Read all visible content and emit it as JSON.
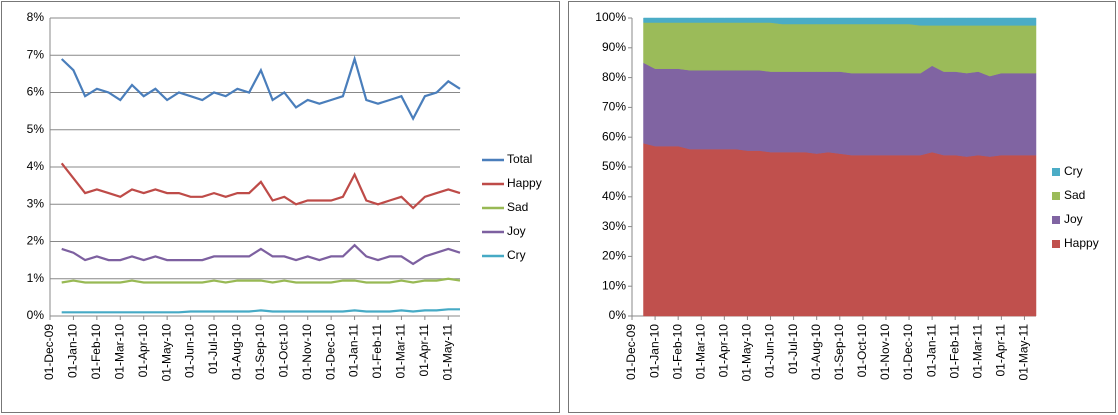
{
  "chart_data": [
    {
      "type": "line",
      "categories": [
        "01-Dec-09",
        null,
        "01-Jan-10",
        null,
        "01-Feb-10",
        null,
        "01-Mar-10",
        null,
        "01-Apr-10",
        null,
        "01-May-10",
        null,
        "01-Jun-10",
        null,
        "01-Jul-10",
        null,
        "01-Aug-10",
        null,
        "01-Sep-10",
        null,
        "01-Oct-10",
        null,
        "01-Nov-10",
        null,
        "01-Dec-10",
        null,
        "01-Jan-11",
        null,
        "01-Feb-11",
        null,
        "01-Mar-11",
        null,
        "01-Apr-11",
        null,
        "01-May-11",
        null
      ],
      "ylim": [
        0,
        8
      ],
      "yticks": [
        {
          "value": 0,
          "label": "0%"
        },
        {
          "value": 1,
          "label": "1%"
        },
        {
          "value": 2,
          "label": "2%"
        },
        {
          "value": 3,
          "label": "3%"
        },
        {
          "value": 4,
          "label": "4%"
        },
        {
          "value": 5,
          "label": "5%"
        },
        {
          "value": 6,
          "label": "6%"
        },
        {
          "value": 7,
          "label": "7%"
        },
        {
          "value": 8,
          "label": "8%"
        }
      ],
      "grid": true,
      "legend": "right",
      "series": [
        {
          "name": "Total",
          "color": "#4a7ebb",
          "values": [
            null,
            6.9,
            6.6,
            5.9,
            6.1,
            6.0,
            5.8,
            6.2,
            5.9,
            6.1,
            5.8,
            6.0,
            5.9,
            5.8,
            6.0,
            5.9,
            6.1,
            6.0,
            6.6,
            5.8,
            6.0,
            5.6,
            5.8,
            5.7,
            5.8,
            5.9,
            6.9,
            5.8,
            5.7,
            5.8,
            5.9,
            5.3,
            5.9,
            6.0,
            6.3,
            6.1
          ]
        },
        {
          "name": "Happy",
          "color": "#be4b48",
          "values": [
            null,
            4.1,
            3.7,
            3.3,
            3.4,
            3.3,
            3.2,
            3.4,
            3.3,
            3.4,
            3.3,
            3.3,
            3.2,
            3.2,
            3.3,
            3.2,
            3.3,
            3.3,
            3.6,
            3.1,
            3.2,
            3.0,
            3.1,
            3.1,
            3.1,
            3.2,
            3.8,
            3.1,
            3.0,
            3.1,
            3.2,
            2.9,
            3.2,
            3.3,
            3.4,
            3.3
          ]
        },
        {
          "name": "Sad",
          "color": "#98b954",
          "values": [
            null,
            0.9,
            0.95,
            0.9,
            0.9,
            0.9,
            0.9,
            0.95,
            0.9,
            0.9,
            0.9,
            0.9,
            0.9,
            0.9,
            0.95,
            0.9,
            0.95,
            0.95,
            0.95,
            0.9,
            0.95,
            0.9,
            0.9,
            0.9,
            0.9,
            0.95,
            0.95,
            0.9,
            0.9,
            0.9,
            0.95,
            0.9,
            0.95,
            0.95,
            1.0,
            0.95
          ]
        },
        {
          "name": "Joy",
          "color": "#7d60a0",
          "values": [
            null,
            1.8,
            1.7,
            1.5,
            1.6,
            1.5,
            1.5,
            1.6,
            1.5,
            1.6,
            1.5,
            1.5,
            1.5,
            1.5,
            1.6,
            1.6,
            1.6,
            1.6,
            1.8,
            1.6,
            1.6,
            1.5,
            1.6,
            1.5,
            1.6,
            1.6,
            1.9,
            1.6,
            1.5,
            1.6,
            1.6,
            1.4,
            1.6,
            1.7,
            1.8,
            1.7
          ]
        },
        {
          "name": "Cry",
          "color": "#46aac5",
          "values": [
            null,
            0.1,
            0.1,
            0.1,
            0.1,
            0.1,
            0.1,
            0.1,
            0.1,
            0.1,
            0.1,
            0.1,
            0.12,
            0.12,
            0.12,
            0.12,
            0.12,
            0.12,
            0.15,
            0.12,
            0.12,
            0.12,
            0.12,
            0.12,
            0.12,
            0.12,
            0.15,
            0.12,
            0.12,
            0.12,
            0.15,
            0.12,
            0.15,
            0.15,
            0.18,
            0.18
          ]
        }
      ]
    },
    {
      "type": "area",
      "stacked": true,
      "categories": [
        "01-Dec-09",
        null,
        "01-Jan-10",
        null,
        "01-Feb-10",
        null,
        "01-Mar-10",
        null,
        "01-Apr-10",
        null,
        "01-May-10",
        null,
        "01-Jun-10",
        null,
        "01-Jul-10",
        null,
        "01-Aug-10",
        null,
        "01-Sep-10",
        null,
        "01-Oct-10",
        null,
        "01-Nov-10",
        null,
        "01-Dec-10",
        null,
        "01-Jan-11",
        null,
        "01-Feb-11",
        null,
        "01-Mar-11",
        null,
        "01-Apr-11",
        null,
        "01-May-11",
        null
      ],
      "ylim": [
        0,
        100
      ],
      "yticks": [
        {
          "value": 0,
          "label": "0%"
        },
        {
          "value": 10,
          "label": "10%"
        },
        {
          "value": 20,
          "label": "20%"
        },
        {
          "value": 30,
          "label": "30%"
        },
        {
          "value": 40,
          "label": "40%"
        },
        {
          "value": 50,
          "label": "50%"
        },
        {
          "value": 60,
          "label": "60%"
        },
        {
          "value": 70,
          "label": "70%"
        },
        {
          "value": 80,
          "label": "80%"
        },
        {
          "value": 90,
          "label": "90%"
        },
        {
          "value": 100,
          "label": "100%"
        }
      ],
      "grid": false,
      "legend": "right",
      "series": [
        {
          "name": "Happy",
          "color": "#c0504d",
          "values": [
            null,
            58,
            57,
            57,
            57,
            56,
            56,
            56,
            56,
            56,
            55.5,
            55.5,
            55,
            55,
            55,
            55,
            54.5,
            55,
            54.5,
            54,
            54,
            54,
            54,
            54,
            54,
            54,
            55,
            54,
            54,
            53.5,
            54,
            53.5,
            54,
            54,
            54,
            54
          ]
        },
        {
          "name": "Joy",
          "color": "#8064a2",
          "values": [
            null,
            27,
            26,
            26,
            26,
            26.5,
            26.5,
            26.5,
            26.5,
            26.5,
            27,
            27,
            27,
            27,
            27,
            27,
            27.5,
            27,
            27.5,
            27.5,
            27.5,
            27.5,
            27.5,
            27.5,
            27.5,
            27.5,
            29,
            28,
            28,
            28,
            28,
            27,
            27.5,
            27.5,
            27.5,
            27.5
          ]
        },
        {
          "name": "Sad",
          "color": "#9bbb59",
          "values": [
            null,
            13.5,
            15.5,
            15.5,
            15.5,
            16,
            16,
            16,
            16,
            16,
            16,
            16,
            16.5,
            16,
            16,
            16,
            16,
            16,
            16,
            16.5,
            16.5,
            16.5,
            16.5,
            16.5,
            16.5,
            16,
            13.5,
            15.5,
            15.5,
            16,
            15.5,
            17,
            16,
            16,
            16,
            16
          ]
        },
        {
          "name": "Cry",
          "color": "#4bacc6",
          "values": [
            null,
            1.5,
            1.5,
            1.5,
            1.5,
            1.5,
            1.5,
            1.5,
            1.5,
            1.5,
            1.5,
            1.5,
            1.5,
            2,
            2,
            2,
            2,
            2,
            2,
            2,
            2,
            2,
            2,
            2,
            2,
            2.5,
            2.5,
            2.5,
            2.5,
            2.5,
            2.5,
            2.5,
            2.5,
            2.5,
            2.5,
            2.5
          ]
        }
      ]
    }
  ]
}
